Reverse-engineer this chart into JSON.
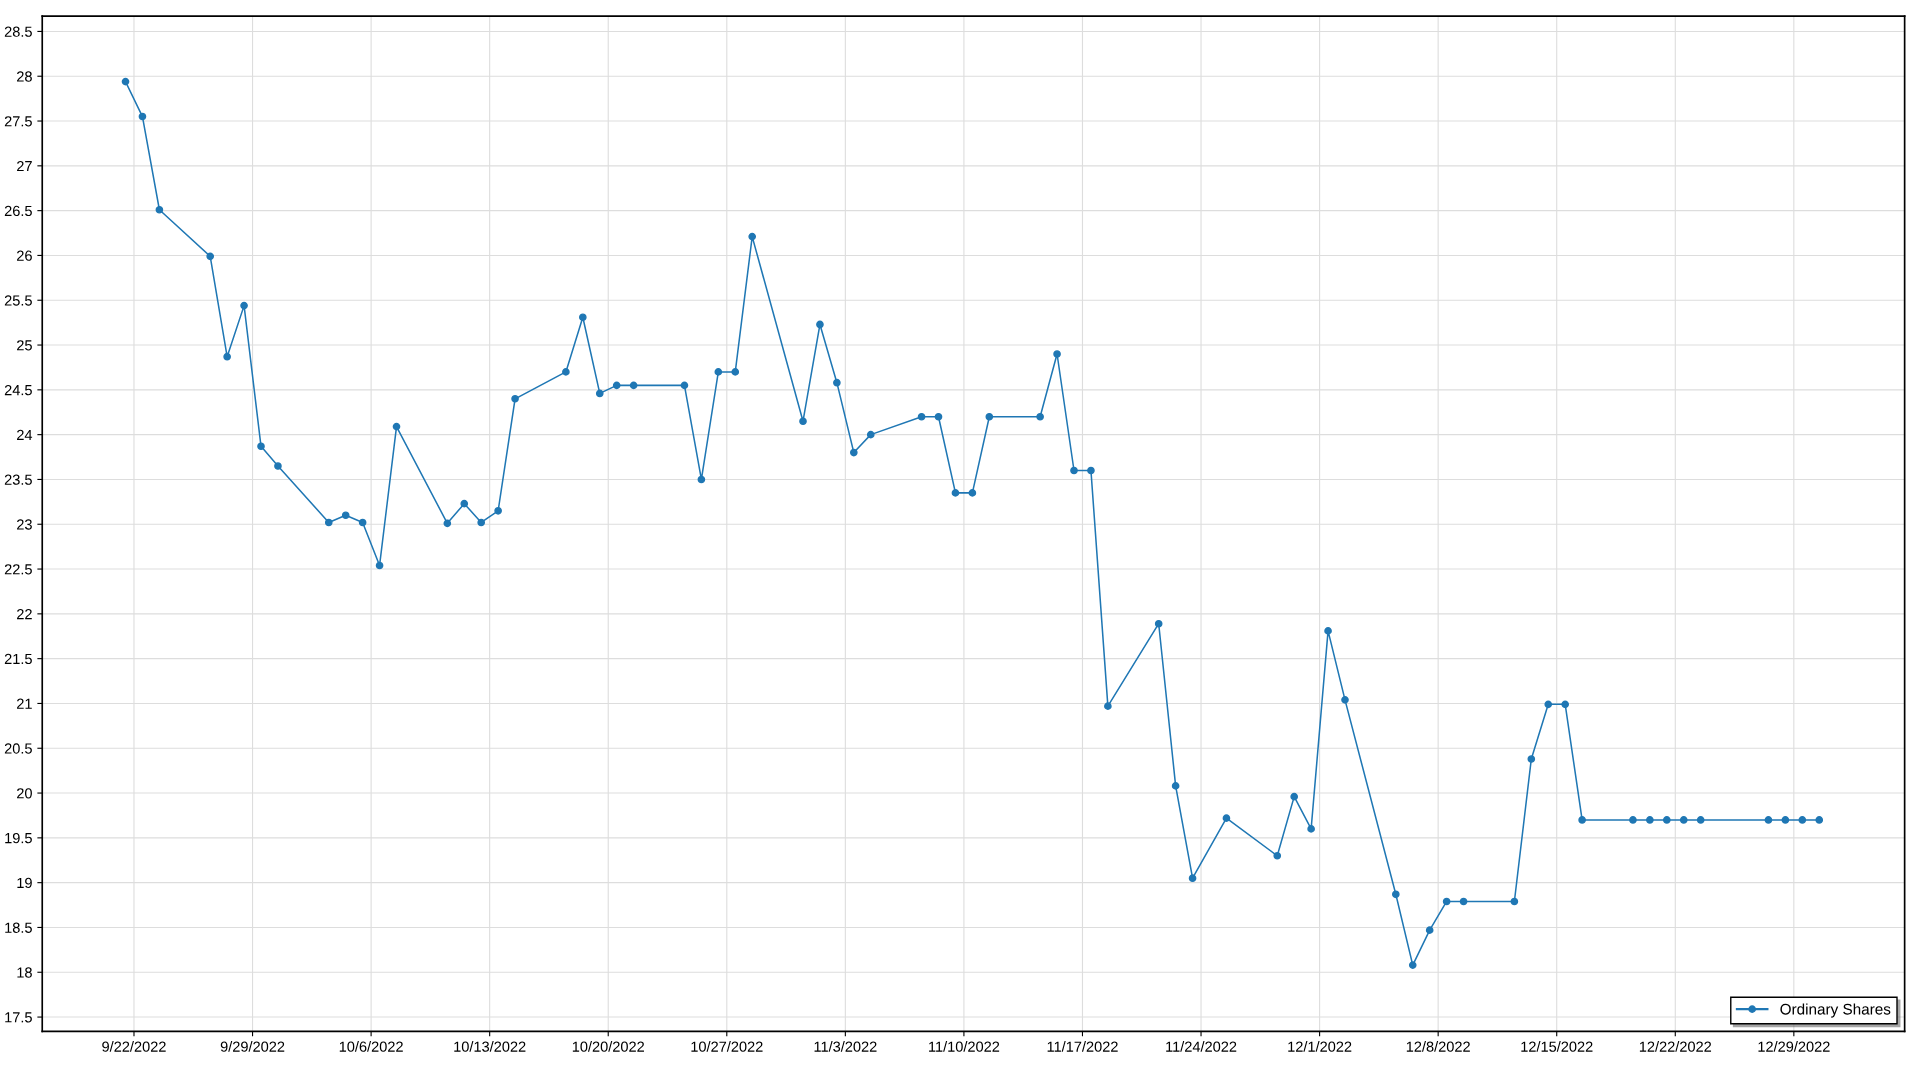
{
  "chart_data": {
    "type": "line",
    "x": [
      "2022-09-21T12:00",
      "2022-09-22T12:00",
      "2022-09-23T12:00",
      "2022-09-26T12:00",
      "2022-09-27T12:00",
      "2022-09-28T12:00",
      "2022-09-29T12:00",
      "2022-09-30T12:00",
      "2022-10-03T12:00",
      "2022-10-04T12:00",
      "2022-10-05T12:00",
      "2022-10-06T12:00",
      "2022-10-07T12:00",
      "2022-10-10T12:00",
      "2022-10-11T12:00",
      "2022-10-12T12:00",
      "2022-10-13T12:00",
      "2022-10-14T12:00",
      "2022-10-17T12:00",
      "2022-10-18T12:00",
      "2022-10-19T12:00",
      "2022-10-20T12:00",
      "2022-10-21T12:00",
      "2022-10-24T12:00",
      "2022-10-25T12:00",
      "2022-10-26T12:00",
      "2022-10-27T12:00",
      "2022-10-28T12:00",
      "2022-10-31T12:00",
      "2022-11-01T12:00",
      "2022-11-02T12:00",
      "2022-11-03T12:00",
      "2022-11-04T12:00",
      "2022-11-07T12:00",
      "2022-11-08T12:00",
      "2022-11-09T12:00",
      "2022-11-10T12:00",
      "2022-11-11T12:00",
      "2022-11-14T12:00",
      "2022-11-15T12:00",
      "2022-11-16T12:00",
      "2022-11-17T12:00",
      "2022-11-18T12:00",
      "2022-11-21T12:00",
      "2022-11-22T12:00",
      "2022-11-23T12:00",
      "2022-11-25T12:00",
      "2022-11-28T12:00",
      "2022-11-29T12:00",
      "2022-11-30T12:00",
      "2022-12-01T12:00",
      "2022-12-02T12:00",
      "2022-12-05T12:00",
      "2022-12-06T12:00",
      "2022-12-07T12:00",
      "2022-12-08T12:00",
      "2022-12-09T12:00",
      "2022-12-12T12:00",
      "2022-12-13T12:00",
      "2022-12-14T12:00",
      "2022-12-15T12:00",
      "2022-12-16T12:00",
      "2022-12-19T12:00",
      "2022-12-20T12:00",
      "2022-12-21T12:00",
      "2022-12-22T12:00",
      "2022-12-23T12:00",
      "2022-12-27T12:00",
      "2022-12-28T12:00",
      "2022-12-29T12:00",
      "2022-12-30T12:00"
    ],
    "series": [
      {
        "name": "Ordinary Shares",
        "color": "#1f77b4",
        "values": [
          27.94,
          27.55,
          26.51,
          25.99,
          24.87,
          25.44,
          23.87,
          23.65,
          23.02,
          23.1,
          23.02,
          22.54,
          24.09,
          23.01,
          23.23,
          23.02,
          23.15,
          24.4,
          24.7,
          25.31,
          24.46,
          24.55,
          24.55,
          24.55,
          23.5,
          24.7,
          24.7,
          26.21,
          24.15,
          25.23,
          24.58,
          23.8,
          24.0,
          24.2,
          24.2,
          23.35,
          23.35,
          24.2,
          24.2,
          24.9,
          23.6,
          23.6,
          20.97,
          21.89,
          20.08,
          19.05,
          19.72,
          19.3,
          19.96,
          19.6,
          21.81,
          21.04,
          18.87,
          18.08,
          18.47,
          18.79,
          18.79,
          18.79,
          20.38,
          20.99,
          20.99,
          19.7,
          19.7,
          19.7,
          19.7,
          19.7,
          19.7,
          19.7,
          19.7,
          19.7,
          19.7
        ]
      }
    ],
    "xlim": [
      "2022-09-16T14:00",
      "2023-01-04T13:00"
    ],
    "xticks": [
      {
        "value": "2022-09-22",
        "label": "9/22/2022"
      },
      {
        "value": "2022-09-29",
        "label": "9/29/2022"
      },
      {
        "value": "2022-10-06",
        "label": "10/6/2022"
      },
      {
        "value": "2022-10-13",
        "label": "10/13/2022"
      },
      {
        "value": "2022-10-20",
        "label": "10/20/2022"
      },
      {
        "value": "2022-10-27",
        "label": "10/27/2022"
      },
      {
        "value": "2022-11-03",
        "label": "11/3/2022"
      },
      {
        "value": "2022-11-10",
        "label": "11/10/2022"
      },
      {
        "value": "2022-11-17",
        "label": "11/17/2022"
      },
      {
        "value": "2022-11-24",
        "label": "11/24/2022"
      },
      {
        "value": "2022-12-01",
        "label": "12/1/2022"
      },
      {
        "value": "2022-12-08",
        "label": "12/8/2022"
      },
      {
        "value": "2022-12-15",
        "label": "12/15/2022"
      },
      {
        "value": "2022-12-22",
        "label": "12/22/2022"
      },
      {
        "value": "2022-12-29",
        "label": "12/29/2022"
      }
    ],
    "ylim": [
      17.34,
      28.67
    ],
    "yticks": [
      17.5,
      18,
      18.5,
      19,
      19.5,
      20,
      20.5,
      21,
      21.5,
      22,
      22.5,
      23,
      23.5,
      24,
      24.5,
      25,
      25.5,
      26,
      26.5,
      27,
      27.5,
      28,
      28.5
    ],
    "grid": true,
    "legend": "bottom right",
    "marker": "circle",
    "line_style": "solid"
  }
}
